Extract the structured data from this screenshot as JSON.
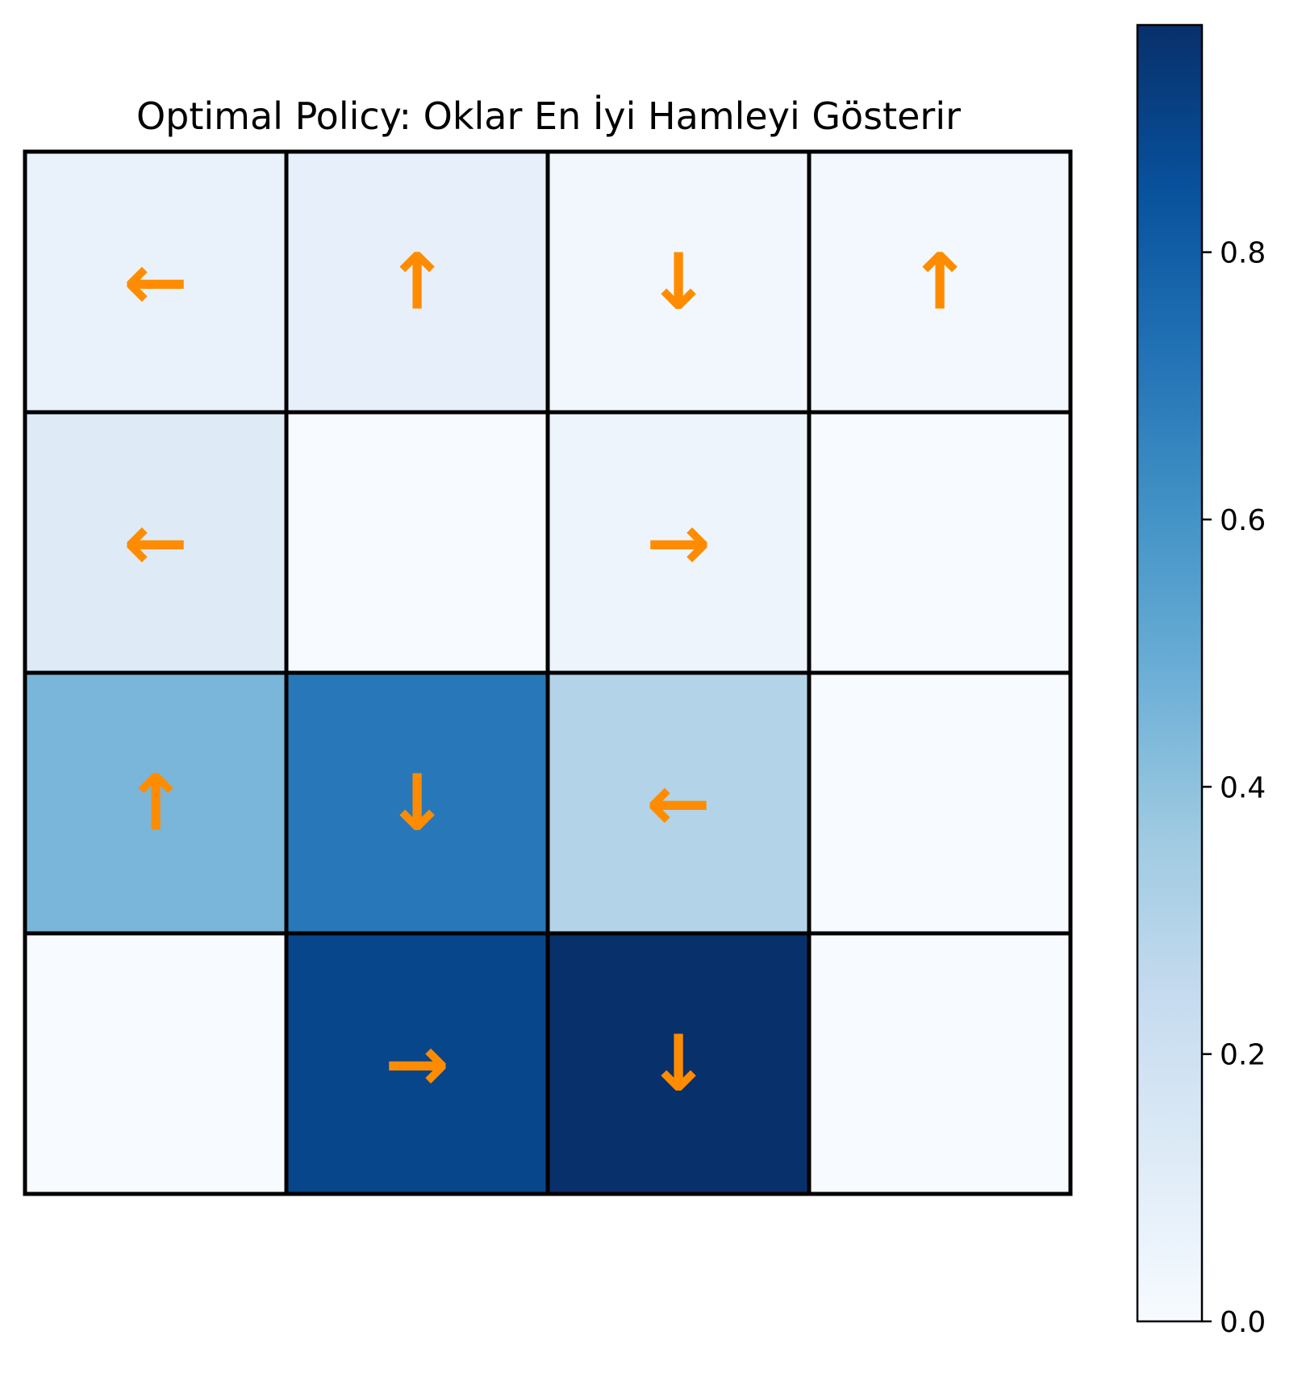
{
  "chart_data": {
    "type": "heatmap",
    "title": "Optimal Policy: Oklar En İyi Hamleyi Gösterir",
    "rows": 4,
    "cols": 4,
    "values": [
      [
        0.07,
        0.08,
        0.03,
        0.02
      ],
      [
        0.12,
        0.0,
        0.05,
        0.0
      ],
      [
        0.45,
        0.7,
        0.3,
        0.0
      ],
      [
        0.0,
        0.89,
        0.97,
        0.0
      ]
    ],
    "arrows": [
      [
        "←",
        "↑",
        "↓",
        "↑"
      ],
      [
        "←",
        "",
        "→",
        ""
      ],
      [
        "↑",
        "↓",
        "←",
        ""
      ],
      [
        "",
        "→",
        "↓",
        ""
      ]
    ],
    "colormap": "Blues",
    "colorbar": {
      "range": [
        0,
        0.97
      ],
      "ticks": [
        0.0,
        0.2,
        0.4,
        0.6,
        0.8
      ],
      "tick_labels": [
        "0.0",
        "0.2",
        "0.4",
        "0.6",
        "0.8"
      ]
    },
    "arrow_color": "#ff8c00",
    "grid_line_color": "#000000"
  }
}
